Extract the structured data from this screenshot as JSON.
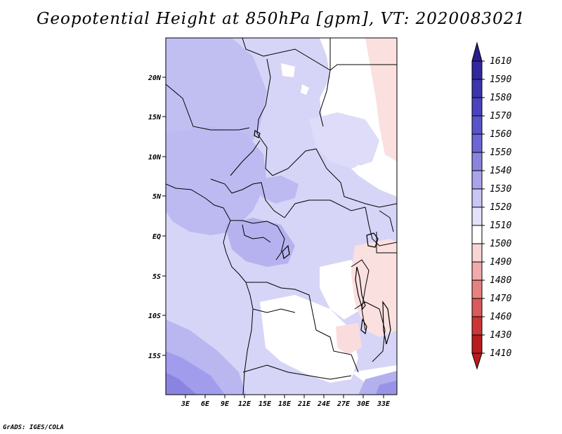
{
  "title": "Geopotential Height at 850hPa [gpm], VT: 2020083021",
  "credit": "GrADS: IGES/COLA",
  "map": {
    "lat_ticks": [
      "20N",
      "15N",
      "10N",
      "5N",
      "EQ",
      "5S",
      "10S",
      "15S"
    ],
    "lon_ticks": [
      "3E",
      "6E",
      "9E",
      "12E",
      "15E",
      "18E",
      "21E",
      "24E",
      "27E",
      "30E",
      "33E"
    ]
  },
  "colorbar": {
    "labels": [
      "1610",
      "1590",
      "1580",
      "1570",
      "1560",
      "1550",
      "1540",
      "1530",
      "1520",
      "1510",
      "1500",
      "1490",
      "1480",
      "1470",
      "1460",
      "1430",
      "1410"
    ],
    "colors": [
      "#2b1f8e",
      "#33289e",
      "#3b34ad",
      "#4a42bf",
      "#5a54cc",
      "#6d66d6",
      "#8a84e0",
      "#a9a4ea",
      "#c8c6f4",
      "#e3e2fa",
      "#ffffff",
      "#f8d4d4",
      "#f0aaaa",
      "#e68282",
      "#da5a5a",
      "#cc3636",
      "#b81c1c"
    ]
  }
}
